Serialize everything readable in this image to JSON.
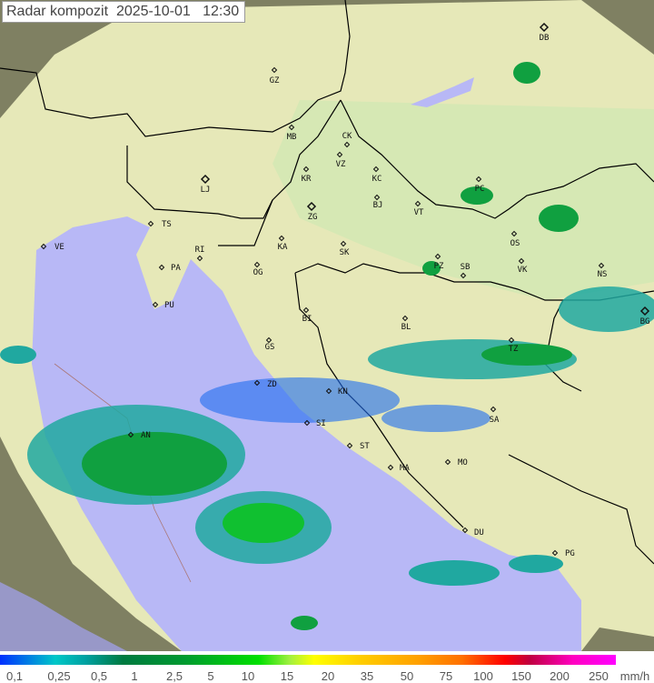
{
  "title": {
    "label": "Radar kompozit",
    "date": "2025-10-01",
    "time": "12:30"
  },
  "legend": {
    "unit": "mm/h",
    "values": [
      "0,1",
      "0,25",
      "0,5",
      "1",
      "2,5",
      "5",
      "10",
      "15",
      "20",
      "35",
      "50",
      "75",
      "100",
      "150",
      "200",
      "250"
    ]
  },
  "cities": [
    "DB",
    "GZ",
    "MB",
    "CK",
    "VZ",
    "KR",
    "KC",
    "LJ",
    "ZG",
    "BJ",
    "VT",
    "PC",
    "OS",
    "PZ",
    "SB",
    "VK",
    "NS",
    "BG",
    "TS",
    "VE",
    "RI",
    "PA",
    "KA",
    "OG",
    "SK",
    "PU",
    "BI",
    "BL",
    "GS",
    "ZD",
    "KN",
    "SI",
    "ST",
    "AN",
    "TZ",
    "SA",
    "MA",
    "MO",
    "DU",
    "PG"
  ],
  "colors": {
    "sea": "#b8b8f6",
    "land": "#e6e8b8",
    "lowland": "#d6e8b4",
    "outside": "#7f8062",
    "rain_light": "#1e6cf0",
    "rain_mid": "#20a8a0",
    "rain_heavy": "#10c030"
  }
}
